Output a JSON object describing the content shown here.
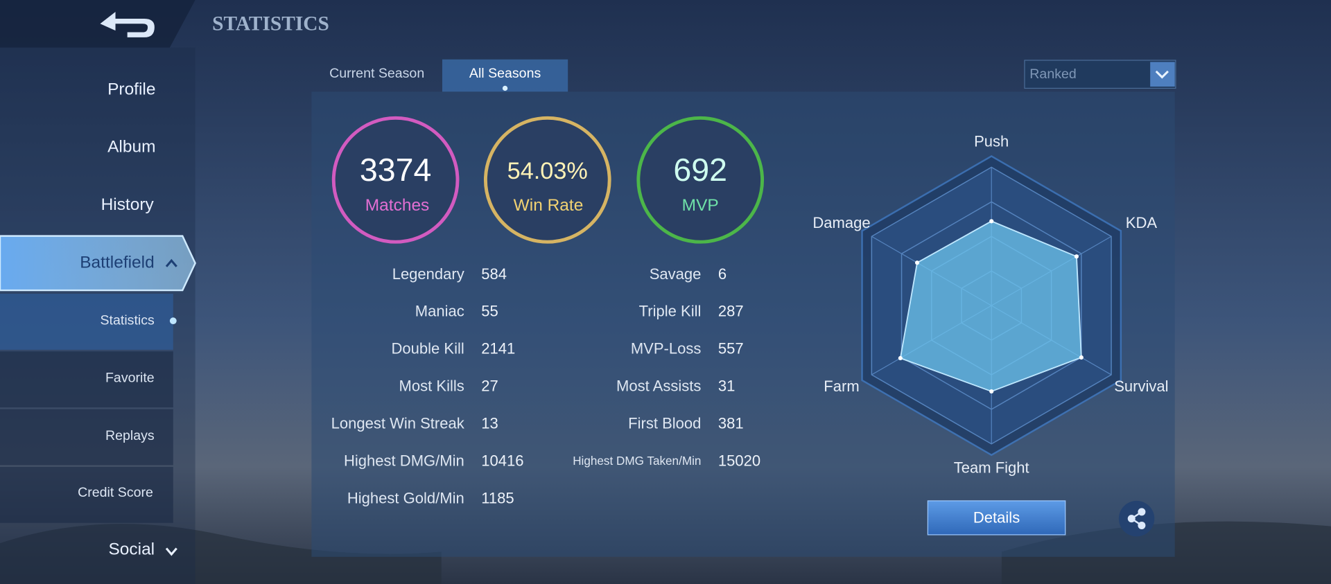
{
  "header": {
    "title": "STATISTICS"
  },
  "nav": [
    "Profile",
    "Album",
    "History",
    "Battlefield",
    "Statistics",
    "Favorite",
    "Replays",
    "Credit Score",
    "Social"
  ],
  "tabs": [
    "Current Season",
    "All Seasons"
  ],
  "mode_select": "Ranked",
  "summary": [
    {
      "value": "3374",
      "label": "Matches"
    },
    {
      "value": "54.03%",
      "label": "Win Rate"
    },
    {
      "value": "692",
      "label": "MVP"
    }
  ],
  "stats_left": [
    {
      "label": "Legendary",
      "value": 584
    },
    {
      "label": "Maniac",
      "value": 55
    },
    {
      "label": "Double Kill",
      "value": 2141
    },
    {
      "label": "Most Kills",
      "value": 27
    },
    {
      "label": "Longest Win Streak",
      "value": 13
    },
    {
      "label": "Highest DMG/Min",
      "value": 10416
    },
    {
      "label": "Highest Gold/Min",
      "value": 1185
    }
  ],
  "stats_right": [
    {
      "label": "Savage",
      "value": 6
    },
    {
      "label": "Triple Kill",
      "value": 287
    },
    {
      "label": "MVP-Loss",
      "value": 557
    },
    {
      "label": "Most Assists",
      "value": 31
    },
    {
      "label": "First Blood",
      "value": 381
    },
    {
      "label": "Highest DMG Taken/Min",
      "value": 15020
    }
  ],
  "radar": {
    "axes": [
      "Push",
      "KDA",
      "Survival",
      "Team Fight",
      "Farm",
      "Damage"
    ],
    "values": [
      0.61,
      0.71,
      0.75,
      0.62,
      0.76,
      0.62
    ]
  },
  "buttons": {
    "details": "Details"
  }
}
